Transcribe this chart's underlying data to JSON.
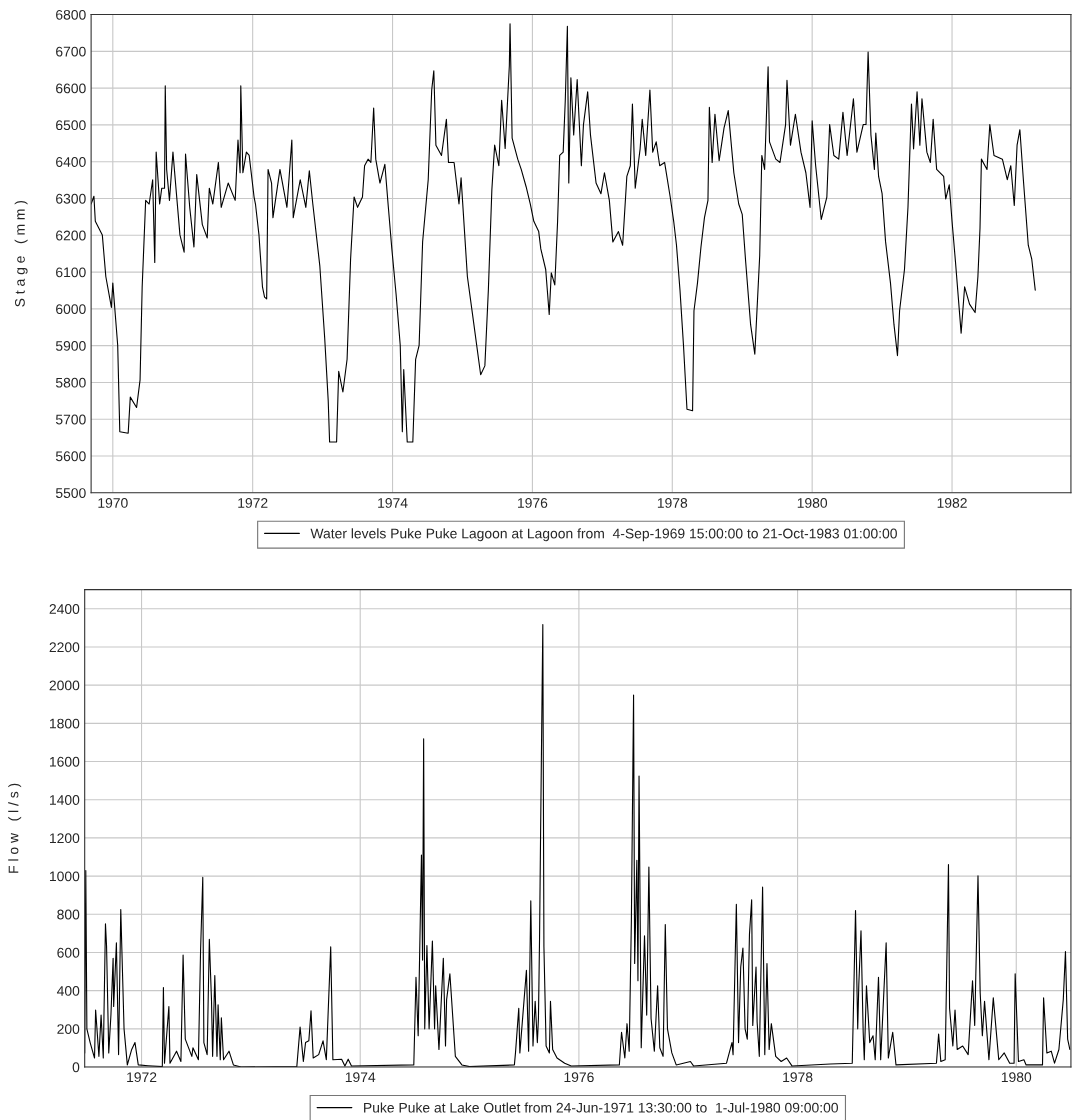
{
  "chart_data": [
    {
      "type": "line",
      "ylabel": "S t a g e   ( m m )",
      "xlim": [
        1969.69,
        1983.7
      ],
      "xticks": [
        1970,
        1972,
        1974,
        1976,
        1978,
        1980,
        1982
      ],
      "ylim": [
        5500,
        6800
      ],
      "yticks": [
        5500,
        5600,
        5700,
        5800,
        5900,
        6000,
        6100,
        6200,
        6300,
        6400,
        6500,
        6600,
        6700,
        6800
      ],
      "grid": true,
      "legend": "bottom",
      "series": [
        {
          "name": "Water levels Puke Puke Lagoon at Lagoon from  4-Sep-1969 15:00:00 to 21-Oct-1983 01:00:00",
          "color": "#000000",
          "x": [
            1969.69,
            1969.73,
            1969.75,
            1969.85,
            1969.9,
            1969.98,
            1970.0,
            1970.07,
            1970.1,
            1970.22,
            1970.25,
            1970.34,
            1970.39,
            1970.42,
            1970.47,
            1970.52,
            1970.57,
            1970.6,
            1970.62,
            1970.67,
            1970.7,
            1970.74,
            1970.75,
            1970.77,
            1970.81,
            1970.86,
            1970.91,
            1970.96,
            1971.02,
            1971.04,
            1971.1,
            1971.16,
            1971.2,
            1971.28,
            1971.35,
            1971.38,
            1971.43,
            1971.51,
            1971.55,
            1971.65,
            1971.75,
            1971.79,
            1971.82,
            1971.83,
            1971.86,
            1971.91,
            1971.95,
            1972.02,
            1972.04,
            1972.09,
            1972.14,
            1972.17,
            1972.2,
            1972.22,
            1972.27,
            1972.29,
            1972.39,
            1972.49,
            1972.56,
            1972.58,
            1972.68,
            1972.76,
            1972.81,
            1972.86,
            1972.96,
            1973.03,
            1973.08,
            1973.1,
            1973.2,
            1973.23,
            1973.29,
            1973.35,
            1973.4,
            1973.45,
            1973.5,
            1973.57,
            1973.6,
            1973.65,
            1973.69,
            1973.73,
            1973.76,
            1973.82,
            1973.89,
            1973.94,
            1973.99,
            1974.05,
            1974.11,
            1974.14,
            1974.16,
            1974.21,
            1974.29,
            1974.33,
            1974.38,
            1974.43,
            1974.51,
            1974.56,
            1974.59,
            1974.62,
            1974.7,
            1974.77,
            1974.8,
            1974.88,
            1974.95,
            1974.98,
            1975.07,
            1975.15,
            1975.26,
            1975.32,
            1975.37,
            1975.42,
            1975.46,
            1975.52,
            1975.56,
            1975.61,
            1975.67,
            1975.68,
            1975.71,
            1975.79,
            1975.84,
            1975.91,
            1975.97,
            1976.02,
            1976.09,
            1976.12,
            1976.19,
            1976.24,
            1976.27,
            1976.32,
            1976.36,
            1976.39,
            1976.44,
            1976.47,
            1976.5,
            1976.52,
            1976.55,
            1976.59,
            1976.64,
            1976.7,
            1976.73,
            1976.79,
            1976.83,
            1976.91,
            1976.98,
            1977.03,
            1977.1,
            1977.15,
            1977.23,
            1977.29,
            1977.35,
            1977.4,
            1977.43,
            1977.47,
            1977.54,
            1977.57,
            1977.62,
            1977.68,
            1977.72,
            1977.77,
            1977.82,
            1977.89,
            1977.97,
            1978.02,
            1978.06,
            1978.11,
            1978.16,
            1978.21,
            1978.29,
            1978.31,
            1978.36,
            1978.41,
            1978.46,
            1978.51,
            1978.53,
            1978.57,
            1978.61,
            1978.67,
            1978.74,
            1978.8,
            1978.88,
            1978.95,
            1979.0,
            1979.05,
            1979.12,
            1979.18,
            1979.25,
            1979.28,
            1979.32,
            1979.37,
            1979.39,
            1979.48,
            1979.54,
            1979.62,
            1979.64,
            1979.69,
            1979.76,
            1979.84,
            1979.91,
            1979.97,
            1980.0,
            1980.05,
            1980.13,
            1980.21,
            1980.25,
            1980.31,
            1980.38,
            1980.44,
            1980.5,
            1980.59,
            1980.64,
            1980.73,
            1980.77,
            1980.8,
            1980.84,
            1980.89,
            1980.91,
            1980.95,
            1981.0,
            1981.05,
            1981.12,
            1981.17,
            1981.22,
            1981.25,
            1981.32,
            1981.37,
            1981.42,
            1981.45,
            1981.5,
            1981.54,
            1981.57,
            1981.64,
            1981.69,
            1981.73,
            1981.78,
            1981.88,
            1981.91,
            1981.96,
            1982.0,
            1982.05,
            1982.13,
            1982.18,
            1982.25,
            1982.33,
            1982.37,
            1982.4,
            1982.42,
            1982.5,
            1982.54,
            1982.6,
            1982.72,
            1982.79,
            1982.84,
            1982.89,
            1982.93,
            1982.97,
            1983.02,
            1983.09,
            1983.14,
            1983.19
          ],
          "values": [
            6285,
            6306,
            6238,
            6201,
            6088,
            6004,
            6070,
            5901,
            5666,
            5662,
            5760,
            5732,
            5807,
            6060,
            6295,
            6285,
            6351,
            6126,
            6426,
            6285,
            6328,
            6328,
            6606,
            6379,
            6295,
            6426,
            6313,
            6201,
            6154,
            6421,
            6276,
            6168,
            6365,
            6229,
            6193,
            6328,
            6285,
            6398,
            6276,
            6342,
            6295,
            6459,
            6370,
            6606,
            6370,
            6426,
            6417,
            6304,
            6285,
            6201,
            6060,
            6032,
            6027,
            6379,
            6342,
            6248,
            6379,
            6276,
            6459,
            6248,
            6351,
            6276,
            6375,
            6285,
            6117,
            5920,
            5751,
            5638,
            5638,
            5830,
            5774,
            5863,
            6135,
            6304,
            6276,
            6304,
            6389,
            6407,
            6398,
            6546,
            6407,
            6342,
            6393,
            6276,
            6163,
            6041,
            5901,
            5666,
            5835,
            5638,
            5638,
            5863,
            5901,
            6182,
            6351,
            6595,
            6647,
            6445,
            6417,
            6515,
            6398,
            6398,
            6285,
            6356,
            6088,
            5976,
            5821,
            5845,
            6051,
            6323,
            6445,
            6389,
            6567,
            6436,
            6661,
            6775,
            6464,
            6407,
            6379,
            6332,
            6285,
            6238,
            6210,
            6163,
            6107,
            5985,
            6098,
            6065,
            6238,
            6417,
            6426,
            6567,
            6768,
            6342,
            6628,
            6473,
            6623,
            6389,
            6501,
            6590,
            6473,
            6342,
            6313,
            6370,
            6295,
            6182,
            6210,
            6173,
            6360,
            6389,
            6557,
            6328,
            6435,
            6515,
            6417,
            6595,
            6426,
            6454,
            6389,
            6398,
            6304,
            6238,
            6173,
            6051,
            5901,
            5727,
            5723,
            5995,
            6070,
            6168,
            6248,
            6295,
            6548,
            6398,
            6529,
            6403,
            6492,
            6539,
            6370,
            6285,
            6257,
            6126,
            5957,
            5877,
            6145,
            6417,
            6379,
            6658,
            6454,
            6407,
            6398,
            6501,
            6621,
            6445,
            6529,
            6426,
            6370,
            6276,
            6511,
            6389,
            6243,
            6304,
            6501,
            6417,
            6407,
            6534,
            6417,
            6571,
            6426,
            6501,
            6501,
            6698,
            6473,
            6379,
            6478,
            6360,
            6313,
            6182,
            6070,
            5957,
            5873,
            5995,
            6107,
            6276,
            6557,
            6435,
            6590,
            6445,
            6571,
            6426,
            6398,
            6515,
            6379,
            6360,
            6299,
            6337,
            6238,
            6126,
            5934,
            6060,
            6013,
            5990,
            6088,
            6220,
            6407,
            6379,
            6501,
            6417,
            6407,
            6351,
            6389,
            6281,
            6445,
            6487,
            6351,
            6173,
            6135,
            6051
          ]
        }
      ]
    },
    {
      "type": "line",
      "ylabel": "F l o w   ( l / s )",
      "xlim": [
        1971.48,
        1980.5
      ],
      "xticks": [
        1972,
        1974,
        1976,
        1978,
        1980
      ],
      "ylim": [
        0,
        2500
      ],
      "yticks": [
        0,
        200,
        400,
        600,
        800,
        1000,
        1200,
        1400,
        1600,
        1800,
        2000,
        2200,
        2400
      ],
      "grid": true,
      "legend": "bottom",
      "series": [
        {
          "name": "Puke Puke at Lake Outlet from 24-Jun-1971 13:30:00 to  1-Jul-1980 09:00:00",
          "color": "#000000",
          "x": [
            1971.48,
            1971.49,
            1971.5,
            1971.53,
            1971.57,
            1971.58,
            1971.61,
            1971.63,
            1971.65,
            1971.67,
            1971.68,
            1971.7,
            1971.72,
            1971.74,
            1971.745,
            1971.77,
            1971.79,
            1971.81,
            1971.84,
            1971.87,
            1971.91,
            1971.94,
            1971.97,
            1972.06,
            1972.19,
            1972.2,
            1972.21,
            1972.25,
            1972.26,
            1972.32,
            1972.36,
            1972.38,
            1972.4,
            1972.46,
            1972.47,
            1972.52,
            1972.54,
            1972.56,
            1972.57,
            1972.6,
            1972.62,
            1972.64,
            1972.65,
            1972.67,
            1972.69,
            1972.7,
            1972.72,
            1972.73,
            1972.75,
            1972.8,
            1972.84,
            1972.91,
            1973.42,
            1973.45,
            1973.48,
            1973.5,
            1973.53,
            1973.55,
            1973.57,
            1973.62,
            1973.66,
            1973.69,
            1973.73,
            1973.75,
            1973.83,
            1973.86,
            1973.89,
            1973.92,
            1974.49,
            1974.51,
            1974.53,
            1974.56,
            1974.57,
            1974.58,
            1974.59,
            1974.61,
            1974.63,
            1974.66,
            1974.68,
            1974.69,
            1974.72,
            1974.76,
            1974.78,
            1974.79,
            1974.82,
            1974.84,
            1974.87,
            1974.93,
            1975.0,
            1975.41,
            1975.42,
            1975.45,
            1975.46,
            1975.52,
            1975.54,
            1975.56,
            1975.58,
            1975.6,
            1975.62,
            1975.63,
            1975.64,
            1975.65,
            1975.67,
            1975.68,
            1975.7,
            1975.73,
            1975.74,
            1975.76,
            1975.8,
            1975.87,
            1975.93,
            1976.37,
            1976.39,
            1976.42,
            1976.44,
            1976.46,
            1976.48,
            1976.5,
            1976.51,
            1976.53,
            1976.54,
            1976.55,
            1976.57,
            1976.6,
            1976.62,
            1976.64,
            1976.66,
            1976.69,
            1976.72,
            1976.74,
            1976.77,
            1976.79,
            1976.81,
            1976.85,
            1976.89,
            1977.02,
            1977.05,
            1977.35,
            1977.4,
            1977.41,
            1977.44,
            1977.46,
            1977.48,
            1977.5,
            1977.52,
            1977.54,
            1977.56,
            1977.58,
            1977.59,
            1977.62,
            1977.63,
            1977.65,
            1977.68,
            1977.7,
            1977.72,
            1977.74,
            1977.76,
            1977.8,
            1977.85,
            1977.9,
            1977.95,
            1978.3,
            1978.5,
            1978.53,
            1978.55,
            1978.56,
            1978.58,
            1978.6,
            1978.61,
            1978.63,
            1978.66,
            1978.69,
            1978.71,
            1978.74,
            1978.76,
            1978.81,
            1978.83,
            1978.87,
            1978.9,
            1979.27,
            1979.29,
            1979.31,
            1979.35,
            1979.38,
            1979.39,
            1979.42,
            1979.44,
            1979.46,
            1979.51,
            1979.56,
            1979.6,
            1979.62,
            1979.65,
            1979.67,
            1979.69,
            1979.71,
            1979.75,
            1979.79,
            1979.84,
            1979.89,
            1979.94,
            1979.98,
            1979.99,
            1980.02,
            1980.07,
            1980.09,
            1980.24,
            1980.25,
            1980.28,
            1980.32,
            1980.35,
            1980.39,
            1980.43,
            1980.45,
            1980.47,
            1980.49
          ],
          "values": [
            74,
            1029,
            200,
            128,
            47,
            299,
            56,
            272,
            47,
            750,
            632,
            74,
            272,
            569,
            317,
            650,
            65,
            825,
            200,
            11,
            92,
            128,
            11,
            7,
            2,
            416,
            20,
            317,
            20,
            83,
            29,
            587,
            146,
            56,
            101,
            38,
            614,
            993,
            128,
            65,
            669,
            344,
            56,
            479,
            56,
            326,
            38,
            258,
            38,
            83,
            11,
            0,
            2,
            209,
            29,
            128,
            137,
            294,
            47,
            65,
            137,
            38,
            629,
            38,
            41,
            5,
            41,
            5,
            11,
            470,
            164,
            1110,
            560,
            1719,
            200,
            636,
            200,
            660,
            200,
            425,
            92,
            569,
            110,
            353,
            488,
            317,
            56,
            11,
            2,
            11,
            74,
            308,
            74,
            506,
            83,
            870,
            110,
            344,
            128,
            254,
            669,
            1245,
            2317,
            632,
            110,
            74,
            344,
            92,
            47,
            20,
            5,
            11,
            182,
            47,
            227,
            83,
            768,
            1948,
            542,
            1083,
            452,
            1524,
            101,
            687,
            272,
            1047,
            254,
            83,
            425,
            101,
            56,
            746,
            200,
            74,
            11,
            29,
            5,
            20,
            128,
            65,
            852,
            128,
            524,
            623,
            200,
            146,
            696,
            876,
            218,
            524,
            236,
            56,
            942,
            65,
            542,
            92,
            227,
            56,
            29,
            47,
            5,
            16,
            20,
            820,
            200,
            434,
            714,
            182,
            38,
            425,
            128,
            164,
            38,
            470,
            38,
            650,
            47,
            182,
            11,
            20,
            173,
            29,
            38,
            1060,
            308,
            110,
            299,
            92,
            110,
            65,
            452,
            218,
            1002,
            389,
            164,
            344,
            38,
            362,
            38,
            74,
            20,
            20,
            488,
            29,
            38,
            11,
            11,
            362,
            74,
            83,
            20,
            92,
            353,
            605,
            146,
            92
          ]
        }
      ]
    }
  ]
}
